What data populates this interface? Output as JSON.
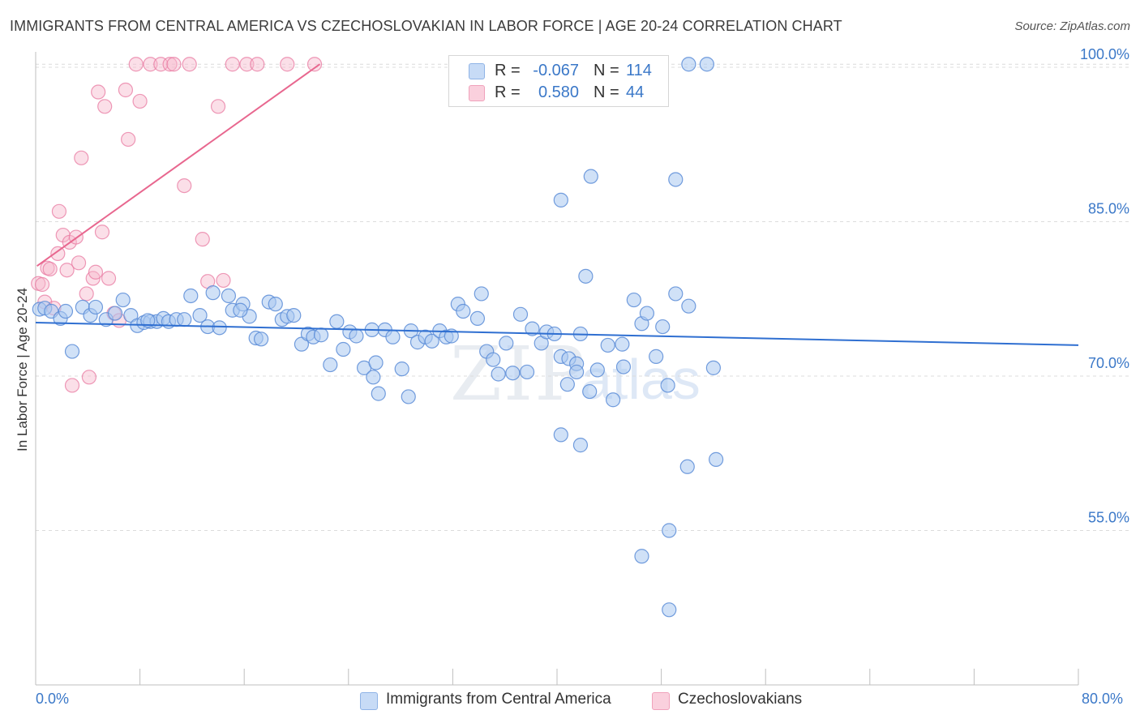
{
  "header": {
    "title": "IMMIGRANTS FROM CENTRAL AMERICA VS CZECHOSLOVAKIAN IN LABOR FORCE | AGE 20-24 CORRELATION CHART",
    "source": "Source: ZipAtlas.com"
  },
  "watermark": {
    "zip": "ZIP",
    "atlas": "atlas"
  },
  "legend": {
    "series1": {
      "r_label": "R =",
      "r_value": "-0.067",
      "n_label": "N =",
      "n_value": "114",
      "color": "#a9c8f0"
    },
    "series2": {
      "r_label": "R =",
      "r_value": "0.580",
      "n_label": "N =",
      "n_value": "44",
      "color": "#f6b9cc"
    }
  },
  "bottom_legend": {
    "series1": "Immigrants from Central America",
    "series2": "Czechoslovakians"
  },
  "chart_data": {
    "type": "scatter",
    "title": "IMMIGRANTS FROM CENTRAL AMERICA VS CZECHOSLOVAKIAN IN LABOR FORCE | AGE 20-24 CORRELATION CHART",
    "xlabel": "",
    "ylabel": "In Labor Force | Age 20-24",
    "xlim": [
      0,
      80
    ],
    "ylim": [
      40,
      101.5
    ],
    "x_tick_labels": [
      "0.0%",
      "80.0%"
    ],
    "y_ticks": [
      55,
      70,
      85,
      100
    ],
    "y_tick_labels": [
      "55.0%",
      "70.0%",
      "85.0%",
      "100.0%"
    ],
    "grid": true,
    "legend_position": "top-center",
    "colors": {
      "series1": "#6fa0e0",
      "series1_line": "#2f6fd1",
      "series2": "#f08cae",
      "series2_line": "#e8678f"
    },
    "series": [
      {
        "name": "Immigrants from Central America",
        "trend": {
          "x": [
            0,
            80
          ],
          "y": [
            75.2,
            73.0
          ]
        },
        "points": [
          [
            0.3,
            76.5
          ],
          [
            0.7,
            76.6
          ],
          [
            1.2,
            76.3
          ],
          [
            1.9,
            75.6
          ],
          [
            2.3,
            76.3
          ],
          [
            2.8,
            72.4
          ],
          [
            3.6,
            76.7
          ],
          [
            4.2,
            75.9
          ],
          [
            4.6,
            76.7
          ],
          [
            5.4,
            75.5
          ],
          [
            6.1,
            76.1
          ],
          [
            6.7,
            77.4
          ],
          [
            7.3,
            75.9
          ],
          [
            7.8,
            74.9
          ],
          [
            8.3,
            75.2
          ],
          [
            8.8,
            75.3
          ],
          [
            9.3,
            75.3
          ],
          [
            9.8,
            75.6
          ],
          [
            10.2,
            75.3
          ],
          [
            10.8,
            75.5
          ],
          [
            11.4,
            75.5
          ],
          [
            11.9,
            77.8
          ],
          [
            12.6,
            75.9
          ],
          [
            13.2,
            74.8
          ],
          [
            13.6,
            78.1
          ],
          [
            14.1,
            74.7
          ],
          [
            14.8,
            77.8
          ],
          [
            15.1,
            76.4
          ],
          [
            15.9,
            77.0
          ],
          [
            16.4,
            75.8
          ],
          [
            16.9,
            73.7
          ],
          [
            17.3,
            73.6
          ],
          [
            17.9,
            77.2
          ],
          [
            18.4,
            77.0
          ],
          [
            18.9,
            75.5
          ],
          [
            19.3,
            75.8
          ],
          [
            19.8,
            75.9
          ],
          [
            20.4,
            73.1
          ],
          [
            20.9,
            74.1
          ],
          [
            21.3,
            73.8
          ],
          [
            21.9,
            74.0
          ],
          [
            22.6,
            71.1
          ],
          [
            23.1,
            75.3
          ],
          [
            23.6,
            72.6
          ],
          [
            24.1,
            74.3
          ],
          [
            24.6,
            73.9
          ],
          [
            25.2,
            70.8
          ],
          [
            25.8,
            74.5
          ],
          [
            26.1,
            71.3
          ],
          [
            26.8,
            74.5
          ],
          [
            27.4,
            73.8
          ],
          [
            28.1,
            70.7
          ],
          [
            28.8,
            74.4
          ],
          [
            29.3,
            73.3
          ],
          [
            29.9,
            73.8
          ],
          [
            30.4,
            73.4
          ],
          [
            31.0,
            74.4
          ],
          [
            31.5,
            73.8
          ],
          [
            32.4,
            77.0
          ],
          [
            32.8,
            76.3
          ],
          [
            33.9,
            75.6
          ],
          [
            34.2,
            78.0
          ],
          [
            34.6,
            72.4
          ],
          [
            35.1,
            71.6
          ],
          [
            35.5,
            70.2
          ],
          [
            36.1,
            73.2
          ],
          [
            36.6,
            70.3
          ],
          [
            37.2,
            76.0
          ],
          [
            37.7,
            70.4
          ],
          [
            38.1,
            74.6
          ],
          [
            38.8,
            73.2
          ],
          [
            39.2,
            74.3
          ],
          [
            39.8,
            74.1
          ],
          [
            40.3,
            71.9
          ],
          [
            40.9,
            71.7
          ],
          [
            41.5,
            71.2
          ],
          [
            41.8,
            74.1
          ],
          [
            42.2,
            79.7
          ],
          [
            43.1,
            70.6
          ],
          [
            43.9,
            73.0
          ],
          [
            44.3,
            67.7
          ],
          [
            45.1,
            70.9
          ],
          [
            45.9,
            77.4
          ],
          [
            46.5,
            75.1
          ],
          [
            46.9,
            76.1
          ],
          [
            47.6,
            71.9
          ],
          [
            48.1,
            74.8
          ],
          [
            49.1,
            78.0
          ],
          [
            50.1,
            76.8
          ],
          [
            52.0,
            70.8
          ],
          [
            26.3,
            68.3
          ],
          [
            28.6,
            68.0
          ],
          [
            40.3,
            64.3
          ],
          [
            41.8,
            63.3
          ],
          [
            42.5,
            68.5
          ],
          [
            41.5,
            70.4
          ],
          [
            50.0,
            61.2
          ],
          [
            52.2,
            61.9
          ],
          [
            48.6,
            55.0
          ],
          [
            49.1,
            89.1
          ],
          [
            42.6,
            89.4
          ],
          [
            40.3,
            87.1
          ],
          [
            46.5,
            52.5
          ],
          [
            48.6,
            47.3
          ],
          [
            50.1,
            100.3
          ],
          [
            51.5,
            100.3
          ],
          [
            41.5,
            100.3
          ],
          [
            48.5,
            69.1
          ],
          [
            45.0,
            73.1
          ],
          [
            40.8,
            69.2
          ],
          [
            31.9,
            73.9
          ],
          [
            25.9,
            69.9
          ],
          [
            15.7,
            76.4
          ],
          [
            8.6,
            75.4
          ]
        ]
      },
      {
        "name": "Czechoslovakians",
        "trend": {
          "x": [
            0.1,
            21.8
          ],
          "y": [
            80.7,
            100.3
          ]
        },
        "points": [
          [
            0.2,
            79.0
          ],
          [
            0.5,
            78.9
          ],
          [
            0.7,
            77.2
          ],
          [
            0.9,
            80.5
          ],
          [
            1.1,
            80.4
          ],
          [
            1.4,
            76.6
          ],
          [
            1.7,
            81.9
          ],
          [
            1.8,
            86.0
          ],
          [
            2.1,
            83.7
          ],
          [
            2.4,
            80.3
          ],
          [
            2.6,
            83.0
          ],
          [
            2.8,
            69.1
          ],
          [
            3.1,
            83.5
          ],
          [
            3.3,
            81.0
          ],
          [
            3.5,
            91.2
          ],
          [
            3.9,
            78.0
          ],
          [
            4.1,
            69.9
          ],
          [
            4.4,
            79.5
          ],
          [
            4.6,
            80.1
          ],
          [
            4.8,
            97.6
          ],
          [
            5.1,
            84.0
          ],
          [
            5.3,
            96.2
          ],
          [
            5.6,
            79.5
          ],
          [
            6.0,
            76.1
          ],
          [
            6.4,
            75.4
          ],
          [
            6.9,
            97.8
          ],
          [
            7.1,
            93.0
          ],
          [
            7.7,
            100.3
          ],
          [
            8.0,
            96.7
          ],
          [
            8.8,
            100.3
          ],
          [
            9.6,
            100.3
          ],
          [
            10.3,
            100.3
          ],
          [
            10.6,
            100.3
          ],
          [
            11.4,
            88.5
          ],
          [
            11.8,
            100.3
          ],
          [
            12.8,
            83.3
          ],
          [
            13.2,
            79.2
          ],
          [
            14.0,
            96.2
          ],
          [
            14.4,
            79.3
          ],
          [
            15.1,
            100.3
          ],
          [
            16.2,
            100.3
          ],
          [
            17.0,
            100.3
          ],
          [
            19.3,
            100.3
          ],
          [
            21.4,
            100.3
          ]
        ]
      }
    ]
  }
}
